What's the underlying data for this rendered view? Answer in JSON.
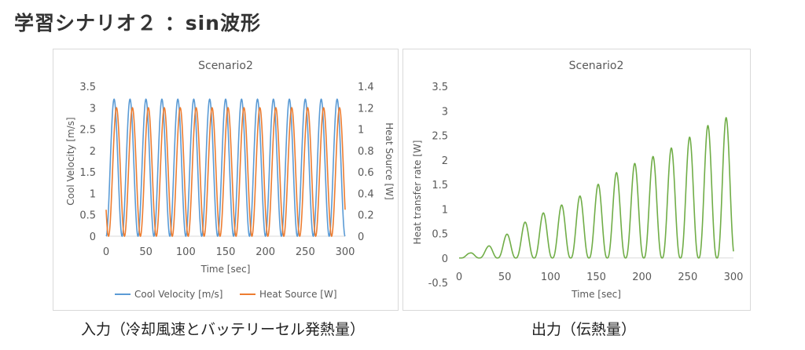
{
  "slide": {
    "title": "学習シナリオ２ ：sin波形",
    "captions": {
      "left": "入力（冷却風速とバッテリーセル発熱量）",
      "right": "出力（伝熱量）"
    }
  },
  "chart_data": [
    {
      "type": "line",
      "title": "Scenario2",
      "xlabel": "Time [sec]",
      "ylabel": "Cool Velocity [m/s]",
      "y2label": "Heat Source [W]",
      "xlim": [
        0,
        300
      ],
      "ylim": [
        0,
        3.5
      ],
      "y2lim": [
        0,
        1.4
      ],
      "xticks": [
        "0",
        "50",
        "100",
        "150",
        "200",
        "250",
        "300"
      ],
      "yticks": [
        "0",
        "0.5",
        "1",
        "1.5",
        "2",
        "2.5",
        "3",
        "3.5"
      ],
      "y2ticks": [
        "0",
        "0.2",
        "0.4",
        "0.6",
        "0.8",
        "1",
        "1.2",
        "1.4"
      ],
      "grid": false,
      "legend_position": "bottom",
      "series": [
        {
          "name": "Cool Velocity [m/s]",
          "axis": "left",
          "color": "#5b9bd5",
          "function": "sin",
          "period": 20,
          "phase_offset_sec": 0,
          "min": 0,
          "max": 3.2,
          "x_start": 0,
          "x_end": 300
        },
        {
          "name": "Heat Source [W]",
          "axis": "right",
          "color": "#ed7d31",
          "function": "sin",
          "period": 20,
          "phase_offset_sec": 3,
          "min": 0,
          "max": 1.2,
          "x_start": 0,
          "x_end": 300
        }
      ]
    },
    {
      "type": "line",
      "title": "Scenario2",
      "xlabel": "Time [sec]",
      "ylabel": "Heat transfer rate [W]",
      "xlim": [
        0,
        300
      ],
      "ylim": [
        -0.5,
        3.5
      ],
      "xticks": [
        "0",
        "50",
        "100",
        "150",
        "200",
        "250",
        "300"
      ],
      "yticks": [
        "-0.5",
        "0",
        "0.5",
        "1",
        "1.5",
        "2",
        "2.5",
        "3",
        "3.5"
      ],
      "grid": false,
      "legend_position": "none",
      "series": [
        {
          "name": "",
          "color": "#70ad47",
          "function": "sin",
          "period": 20,
          "x_start": 0,
          "x_end": 300,
          "peaks": [
            {
              "x": 12,
              "y": 0.1
            },
            {
              "x": 31,
              "y": 0.23
            },
            {
              "x": 51,
              "y": 0.47
            },
            {
              "x": 71,
              "y": 0.72
            },
            {
              "x": 91,
              "y": 0.91
            },
            {
              "x": 111,
              "y": 1.07
            },
            {
              "x": 131,
              "y": 1.25
            },
            {
              "x": 151,
              "y": 1.49
            },
            {
              "x": 171,
              "y": 1.73
            },
            {
              "x": 191,
              "y": 1.92
            },
            {
              "x": 211,
              "y": 2.06
            },
            {
              "x": 231,
              "y": 2.23
            },
            {
              "x": 251,
              "y": 2.45
            },
            {
              "x": 271,
              "y": 2.69
            },
            {
              "x": 291,
              "y": 2.86
            }
          ]
        }
      ]
    }
  ]
}
